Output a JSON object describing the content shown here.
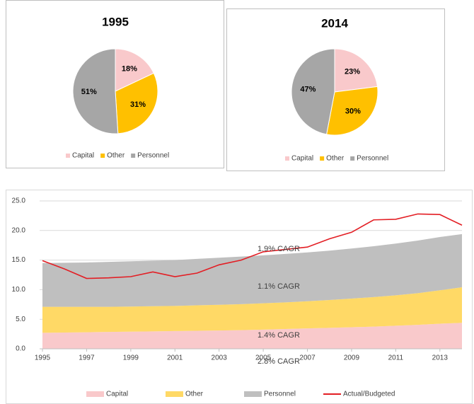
{
  "chart_data": [
    {
      "type": "pie",
      "title": "1995",
      "categories": [
        "Capital",
        "Other",
        "Personnel"
      ],
      "values": [
        18,
        31,
        51
      ],
      "value_labels": [
        "18%",
        "31%",
        "51%"
      ],
      "colors": [
        "#f9c9cb",
        "#ffc000",
        "#a6a6a6"
      ],
      "legend": "bottom"
    },
    {
      "type": "pie",
      "title": "2014",
      "categories": [
        "Capital",
        "Other",
        "Personnel"
      ],
      "values": [
        23,
        30,
        47
      ],
      "value_labels": [
        "23%",
        "30%",
        "47%"
      ],
      "colors": [
        "#f9c9cb",
        "#ffc000",
        "#a6a6a6"
      ],
      "legend": "bottom"
    },
    {
      "type": "area",
      "stacked": true,
      "x": [
        1995,
        1996,
        1997,
        1998,
        1999,
        2000,
        2001,
        2002,
        2003,
        2004,
        2005,
        2006,
        2007,
        2008,
        2009,
        2010,
        2011,
        2012,
        2013,
        2014
      ],
      "xlim": [
        1995,
        2014
      ],
      "xticks": [
        1995,
        1997,
        1999,
        2001,
        2003,
        2005,
        2007,
        2009,
        2011,
        2013
      ],
      "ylim": [
        0,
        25
      ],
      "yticks": [
        {
          "value": 0,
          "label": "0.0"
        },
        {
          "value": 5,
          "label": "5.0"
        },
        {
          "value": 10,
          "label": "10.0"
        },
        {
          "value": 15,
          "label": "15.0"
        },
        {
          "value": 20,
          "label": "20.0"
        },
        {
          "value": 25,
          "label": "25.0"
        }
      ],
      "grid": true,
      "legend": "bottom",
      "series": [
        {
          "name": "Capital",
          "color": "#f9c9cb",
          "values": [
            2.7,
            2.75,
            2.8,
            2.85,
            2.9,
            2.95,
            3.0,
            3.05,
            3.1,
            3.15,
            3.25,
            3.35,
            3.45,
            3.55,
            3.65,
            3.75,
            3.9,
            4.05,
            4.25,
            4.4
          ]
        },
        {
          "name": "Other",
          "color": "#ffd966",
          "values": [
            4.4,
            4.35,
            4.3,
            4.25,
            4.25,
            4.25,
            4.25,
            4.3,
            4.35,
            4.4,
            4.45,
            4.5,
            4.6,
            4.7,
            4.85,
            5.0,
            5.15,
            5.35,
            5.65,
            6.0
          ]
        },
        {
          "name": "Personnel",
          "color": "#bfbfbf",
          "values": [
            7.4,
            7.45,
            7.5,
            7.6,
            7.65,
            7.7,
            7.75,
            7.85,
            7.95,
            8.05,
            8.1,
            8.2,
            8.25,
            8.35,
            8.45,
            8.6,
            8.75,
            8.9,
            9.0,
            9.0
          ]
        },
        {
          "name": "Actual/Budgeted",
          "type": "line",
          "color": "#e31e24",
          "values": [
            14.9,
            13.5,
            11.9,
            12.0,
            12.2,
            13.0,
            12.2,
            12.8,
            14.2,
            15.0,
            16.4,
            16.8,
            17.2,
            18.6,
            19.7,
            21.8,
            21.9,
            22.8,
            22.7,
            20.9
          ]
        }
      ],
      "annotations": [
        "1.9% CAGR",
        "1.1% CAGR",
        "1.4% CAGR",
        "2.8% CAGR"
      ]
    }
  ]
}
